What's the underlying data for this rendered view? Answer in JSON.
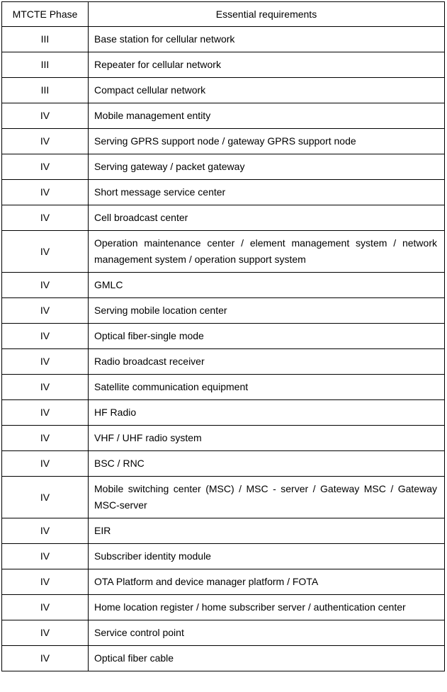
{
  "colors": {
    "border": "#000000",
    "text": "#000000",
    "background": "#ffffff"
  },
  "table": {
    "header": {
      "phase": "MTCTE Phase",
      "requirements": "Essential requirements"
    },
    "rows": [
      {
        "phase": "III",
        "requirement": "Base station for cellular network"
      },
      {
        "phase": "III",
        "requirement": "Repeater for cellular network"
      },
      {
        "phase": "III",
        "requirement": "Compact cellular network"
      },
      {
        "phase": "IV",
        "requirement": "Mobile management entity"
      },
      {
        "phase": "IV",
        "requirement": "Serving GPRS support node / gateway GPRS support node"
      },
      {
        "phase": "IV",
        "requirement": "Serving gateway / packet gateway"
      },
      {
        "phase": "IV",
        "requirement": "Short message service center"
      },
      {
        "phase": "IV",
        "requirement": "Cell broadcast center"
      },
      {
        "phase": "IV",
        "requirement": "Operation maintenance center / element management system / network management system / operation support system"
      },
      {
        "phase": "IV",
        "requirement": "GMLC"
      },
      {
        "phase": "IV",
        "requirement": "Serving mobile location center"
      },
      {
        "phase": "IV",
        "requirement": "Optical fiber-single mode"
      },
      {
        "phase": "IV",
        "requirement": "Radio broadcast receiver"
      },
      {
        "phase": "IV",
        "requirement": "Satellite communication equipment"
      },
      {
        "phase": "IV",
        "requirement": "HF Radio"
      },
      {
        "phase": "IV",
        "requirement": "VHF / UHF radio system"
      },
      {
        "phase": "IV",
        "requirement": "BSC / RNC"
      },
      {
        "phase": "IV",
        "requirement": "Mobile switching center (MSC) / MSC - server / Gateway MSC / Gateway MSC-server"
      },
      {
        "phase": "IV",
        "requirement": "EIR"
      },
      {
        "phase": "IV",
        "requirement": "Subscriber identity module"
      },
      {
        "phase": "IV",
        "requirement": "OTA Platform and device manager platform / FOTA"
      },
      {
        "phase": "IV",
        "requirement": "Home location register / home subscriber server / authentication center"
      },
      {
        "phase": "IV",
        "requirement": "Service control point"
      },
      {
        "phase": "IV",
        "requirement": "Optical fiber cable"
      }
    ]
  }
}
